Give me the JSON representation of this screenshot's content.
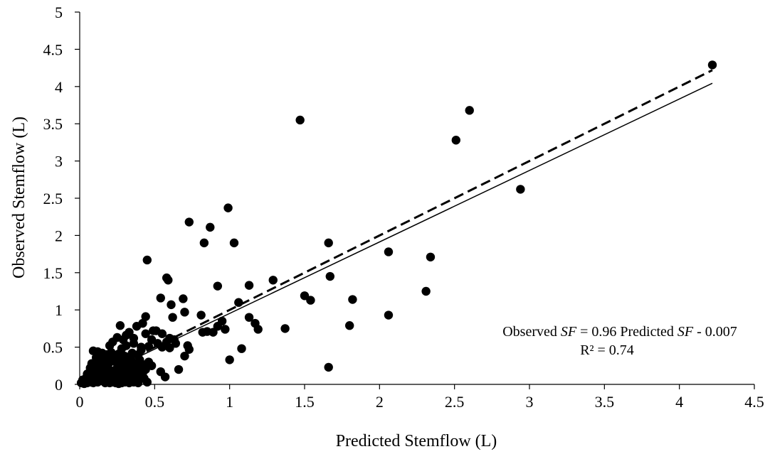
{
  "chart_data": {
    "type": "scatter",
    "title": "",
    "xlabel": "Predicted Stemflow (L)",
    "ylabel": "Observed Stemflow (L)",
    "xlim": [
      0,
      4.5
    ],
    "ylim": [
      0,
      5
    ],
    "xticks": [
      "0",
      "0.5",
      "1",
      "1.5",
      "2",
      "2.5",
      "3",
      "3.5",
      "4",
      "4.5"
    ],
    "yticks": [
      "0",
      "0.5",
      "1",
      "1.5",
      "2",
      "2.5",
      "3",
      "3.5",
      "4",
      "4.5",
      "5"
    ],
    "grid": false,
    "legend": "none",
    "marker_color": "#000000",
    "annotation": {
      "equation_prefix": "Observed ",
      "equation_var1": "SF",
      "equation_mid": " = 0.96 Predicted ",
      "equation_var2": "SF",
      "equation_suffix": " - 0.007",
      "r_squared": "R² = 0.74"
    },
    "fit_line": {
      "slope": 0.96,
      "intercept": -0.007,
      "x_range": [
        0,
        4.22
      ],
      "style": "solid"
    },
    "one_to_one_line": {
      "slope": 1,
      "intercept": 0,
      "x_range": [
        0,
        4.22
      ],
      "style": "dashed"
    },
    "points": [
      [
        4.22,
        4.29
      ],
      [
        2.6,
        3.68
      ],
      [
        2.51,
        3.28
      ],
      [
        2.94,
        2.62
      ],
      [
        1.47,
        3.55
      ],
      [
        0.99,
        2.37
      ],
      [
        0.73,
        2.18
      ],
      [
        0.87,
        2.11
      ],
      [
        0.83,
        1.9
      ],
      [
        1.03,
        1.9
      ],
      [
        1.66,
        1.9
      ],
      [
        2.06,
        1.78
      ],
      [
        2.34,
        1.71
      ],
      [
        0.45,
        1.67
      ],
      [
        0.58,
        1.43
      ],
      [
        0.59,
        1.4
      ],
      [
        1.29,
        1.4
      ],
      [
        1.67,
        1.45
      ],
      [
        1.13,
        1.33
      ],
      [
        0.92,
        1.32
      ],
      [
        2.31,
        1.25
      ],
      [
        0.54,
        1.16
      ],
      [
        1.5,
        1.19
      ],
      [
        1.54,
        1.13
      ],
      [
        1.82,
        1.14
      ],
      [
        0.69,
        1.15
      ],
      [
        1.06,
        1.1
      ],
      [
        0.61,
        1.07
      ],
      [
        0.7,
        0.97
      ],
      [
        2.06,
        0.93
      ],
      [
        0.44,
        0.91
      ],
      [
        0.62,
        0.9
      ],
      [
        1.13,
        0.9
      ],
      [
        0.81,
        0.93
      ],
      [
        0.95,
        0.85
      ],
      [
        1.17,
        0.82
      ],
      [
        0.92,
        0.78
      ],
      [
        0.97,
        0.74
      ],
      [
        1.19,
        0.74
      ],
      [
        1.37,
        0.75
      ],
      [
        0.85,
        0.71
      ],
      [
        0.89,
        0.7
      ],
      [
        0.82,
        0.7
      ],
      [
        0.49,
        0.72
      ],
      [
        0.51,
        0.72
      ],
      [
        0.55,
        0.68
      ],
      [
        0.6,
        0.62
      ],
      [
        0.63,
        0.6
      ],
      [
        0.72,
        0.52
      ],
      [
        0.73,
        0.47
      ],
      [
        0.64,
        0.55
      ],
      [
        0.58,
        0.57
      ],
      [
        0.48,
        0.6
      ],
      [
        0.52,
        0.55
      ],
      [
        0.46,
        0.51
      ],
      [
        0.41,
        0.5
      ],
      [
        0.55,
        0.5
      ],
      [
        0.6,
        0.49
      ],
      [
        0.42,
        0.82
      ],
      [
        0.38,
        0.78
      ],
      [
        0.27,
        0.79
      ],
      [
        0.44,
        0.68
      ],
      [
        0.33,
        0.7
      ],
      [
        0.29,
        0.6
      ],
      [
        0.25,
        0.63
      ],
      [
        0.22,
        0.57
      ],
      [
        0.36,
        0.55
      ],
      [
        0.31,
        0.52
      ],
      [
        0.41,
        0.46
      ],
      [
        0.39,
        0.4
      ],
      [
        1.8,
        0.79
      ],
      [
        1.66,
        0.23
      ],
      [
        1.0,
        0.33
      ],
      [
        1.08,
        0.48
      ],
      [
        0.66,
        0.2
      ],
      [
        0.54,
        0.17
      ],
      [
        0.57,
        0.1
      ],
      [
        0.7,
        0.38
      ],
      [
        0.48,
        0.25
      ],
      [
        0.46,
        0.3
      ],
      [
        0.09,
        0.45
      ],
      [
        0.12,
        0.44
      ],
      [
        0.15,
        0.42
      ],
      [
        0.18,
        0.4
      ],
      [
        0.21,
        0.43
      ],
      [
        0.24,
        0.37
      ],
      [
        0.26,
        0.41
      ],
      [
        0.3,
        0.38
      ],
      [
        0.33,
        0.35
      ],
      [
        0.35,
        0.3
      ],
      [
        0.37,
        0.27
      ],
      [
        0.4,
        0.33
      ],
      [
        0.43,
        0.25
      ],
      [
        0.44,
        0.2
      ],
      [
        0.42,
        0.15
      ],
      [
        0.4,
        0.1
      ],
      [
        0.38,
        0.05
      ],
      [
        0.45,
        0.03
      ],
      [
        0.43,
        0.08
      ],
      [
        0.36,
        0.12
      ],
      [
        0.34,
        0.2
      ],
      [
        0.32,
        0.24
      ],
      [
        0.29,
        0.3
      ],
      [
        0.27,
        0.27
      ],
      [
        0.25,
        0.22
      ],
      [
        0.23,
        0.31
      ],
      [
        0.2,
        0.34
      ],
      [
        0.17,
        0.3
      ],
      [
        0.14,
        0.33
      ],
      [
        0.11,
        0.36
      ],
      [
        0.08,
        0.28
      ],
      [
        0.07,
        0.22
      ],
      [
        0.1,
        0.25
      ],
      [
        0.13,
        0.21
      ],
      [
        0.16,
        0.24
      ],
      [
        0.19,
        0.2
      ],
      [
        0.22,
        0.18
      ],
      [
        0.24,
        0.14
      ],
      [
        0.27,
        0.16
      ],
      [
        0.3,
        0.13
      ],
      [
        0.32,
        0.1
      ],
      [
        0.35,
        0.08
      ],
      [
        0.31,
        0.05
      ],
      [
        0.28,
        0.07
      ],
      [
        0.26,
        0.04
      ],
      [
        0.23,
        0.06
      ],
      [
        0.21,
        0.09
      ],
      [
        0.18,
        0.12
      ],
      [
        0.15,
        0.15
      ],
      [
        0.12,
        0.17
      ],
      [
        0.09,
        0.19
      ],
      [
        0.06,
        0.15
      ],
      [
        0.05,
        0.11
      ],
      [
        0.04,
        0.08
      ],
      [
        0.03,
        0.05
      ],
      [
        0.02,
        0.03
      ],
      [
        0.01,
        0.02
      ],
      [
        0.02,
        0.06
      ],
      [
        0.04,
        0.03
      ],
      [
        0.06,
        0.05
      ],
      [
        0.08,
        0.07
      ],
      [
        0.1,
        0.09
      ],
      [
        0.11,
        0.12
      ],
      [
        0.13,
        0.1
      ],
      [
        0.15,
        0.08
      ],
      [
        0.17,
        0.06
      ],
      [
        0.19,
        0.04
      ],
      [
        0.2,
        0.02
      ],
      [
        0.22,
        0.03
      ],
      [
        0.24,
        0.02
      ],
      [
        0.26,
        0.01
      ],
      [
        0.28,
        0.02
      ],
      [
        0.3,
        0.03
      ],
      [
        0.33,
        0.02
      ],
      [
        0.36,
        0.03
      ],
      [
        0.39,
        0.02
      ],
      [
        0.14,
        0.05
      ],
      [
        0.12,
        0.03
      ],
      [
        0.09,
        0.02
      ],
      [
        0.07,
        0.03
      ],
      [
        0.05,
        0.02
      ],
      [
        0.03,
        0.01
      ],
      [
        0.16,
        0.11
      ],
      [
        0.18,
        0.16
      ],
      [
        0.2,
        0.14
      ],
      [
        0.22,
        0.11
      ],
      [
        0.25,
        0.09
      ],
      [
        0.27,
        0.11
      ],
      [
        0.29,
        0.09
      ],
      [
        0.31,
        0.17
      ],
      [
        0.34,
        0.14
      ],
      [
        0.37,
        0.18
      ],
      [
        0.39,
        0.22
      ],
      [
        0.41,
        0.28
      ],
      [
        0.29,
        0.2
      ],
      [
        0.26,
        0.33
      ],
      [
        0.19,
        0.27
      ],
      [
        0.16,
        0.36
      ],
      [
        0.13,
        0.27
      ],
      [
        0.35,
        0.42
      ],
      [
        0.28,
        0.48
      ],
      [
        0.2,
        0.52
      ],
      [
        0.31,
        0.66
      ],
      [
        0.36,
        0.62
      ],
      [
        0.24,
        0.05
      ],
      [
        0.17,
        0.02
      ],
      [
        0.33,
        0.06
      ],
      [
        0.11,
        0.06
      ],
      [
        0.07,
        0.1
      ],
      [
        0.05,
        0.14
      ]
    ]
  }
}
